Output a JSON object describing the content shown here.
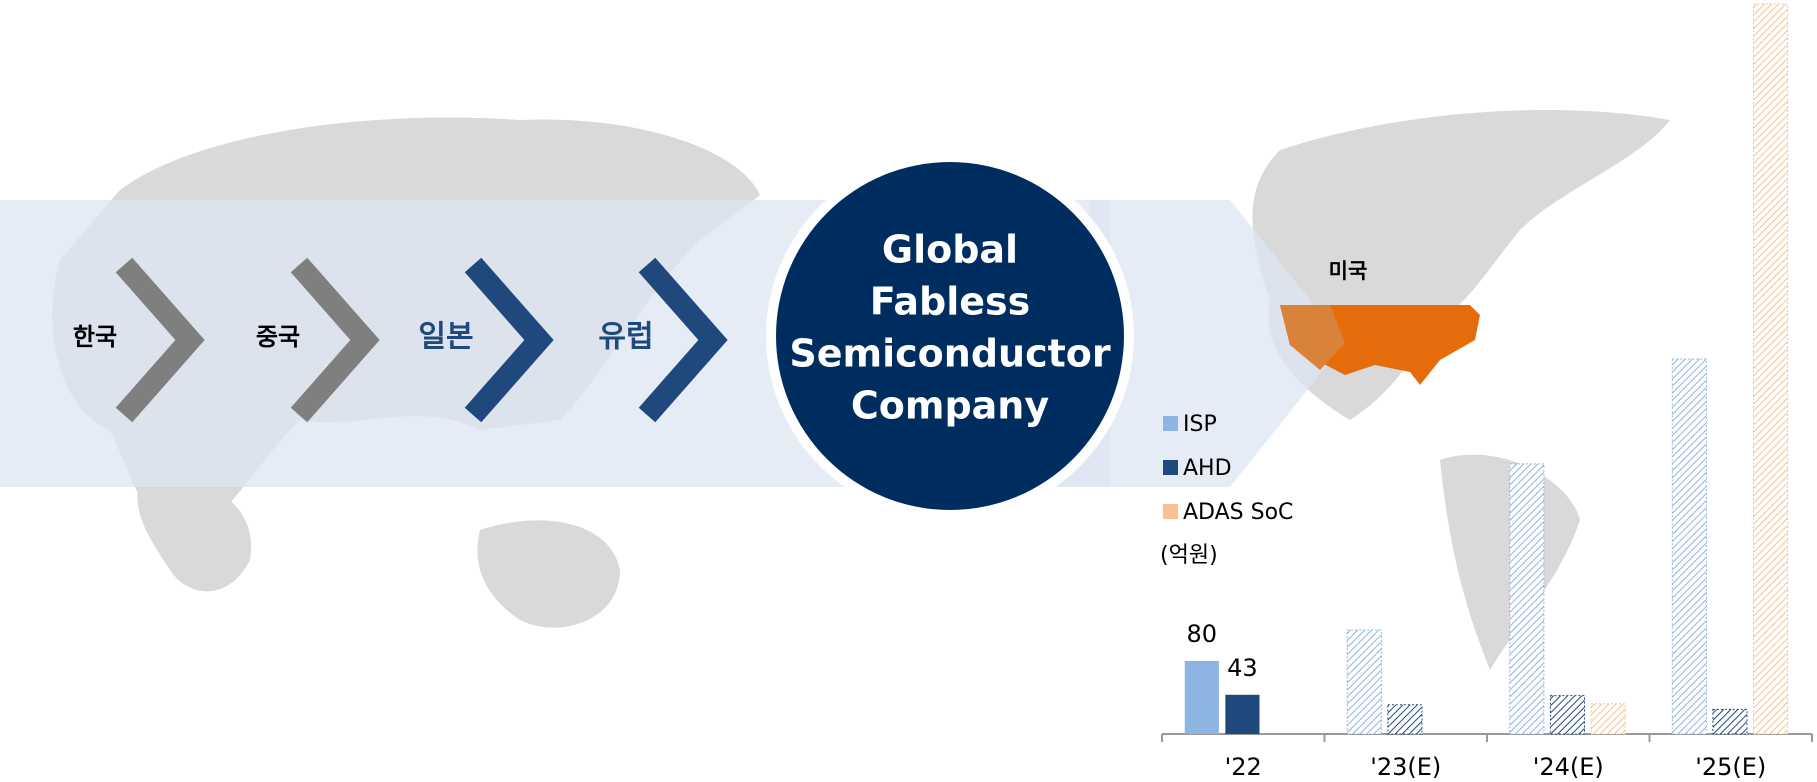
{
  "steps": [
    {
      "label": "한국",
      "color": "#7f7f7f",
      "text_color": "#000000"
    },
    {
      "label": "중국",
      "color": "#7f7f7f",
      "text_color": "#000000"
    },
    {
      "label": "일본",
      "color": "#1f497d",
      "text_color": "#1f497d"
    },
    {
      "label": "유럽",
      "color": "#1f497d",
      "text_color": "#1f497d"
    }
  ],
  "center_label": [
    "Global",
    "Fabless",
    "Semiconductor",
    "Company"
  ],
  "region_label": "미국",
  "chart_data": {
    "type": "bar",
    "categories": [
      "'22",
      "'23(E)",
      "'24(E)",
      "'25(E)"
    ],
    "series": [
      {
        "name": "ISP",
        "color": "#8db4e2",
        "values": [
          80,
          114,
          296,
          411
        ]
      },
      {
        "name": "AHD",
        "color": "#1f497d",
        "values": [
          43,
          32,
          42,
          27
        ]
      },
      {
        "name": "ADAS SoC",
        "color": "#fac090",
        "values": [
          null,
          null,
          33,
          800
        ]
      }
    ],
    "unit": "(억원)",
    "hatched": [
      false,
      true,
      true,
      true
    ],
    "labeled": [
      true,
      false,
      false,
      false
    ],
    "ylim": [
      0,
      800
    ]
  }
}
